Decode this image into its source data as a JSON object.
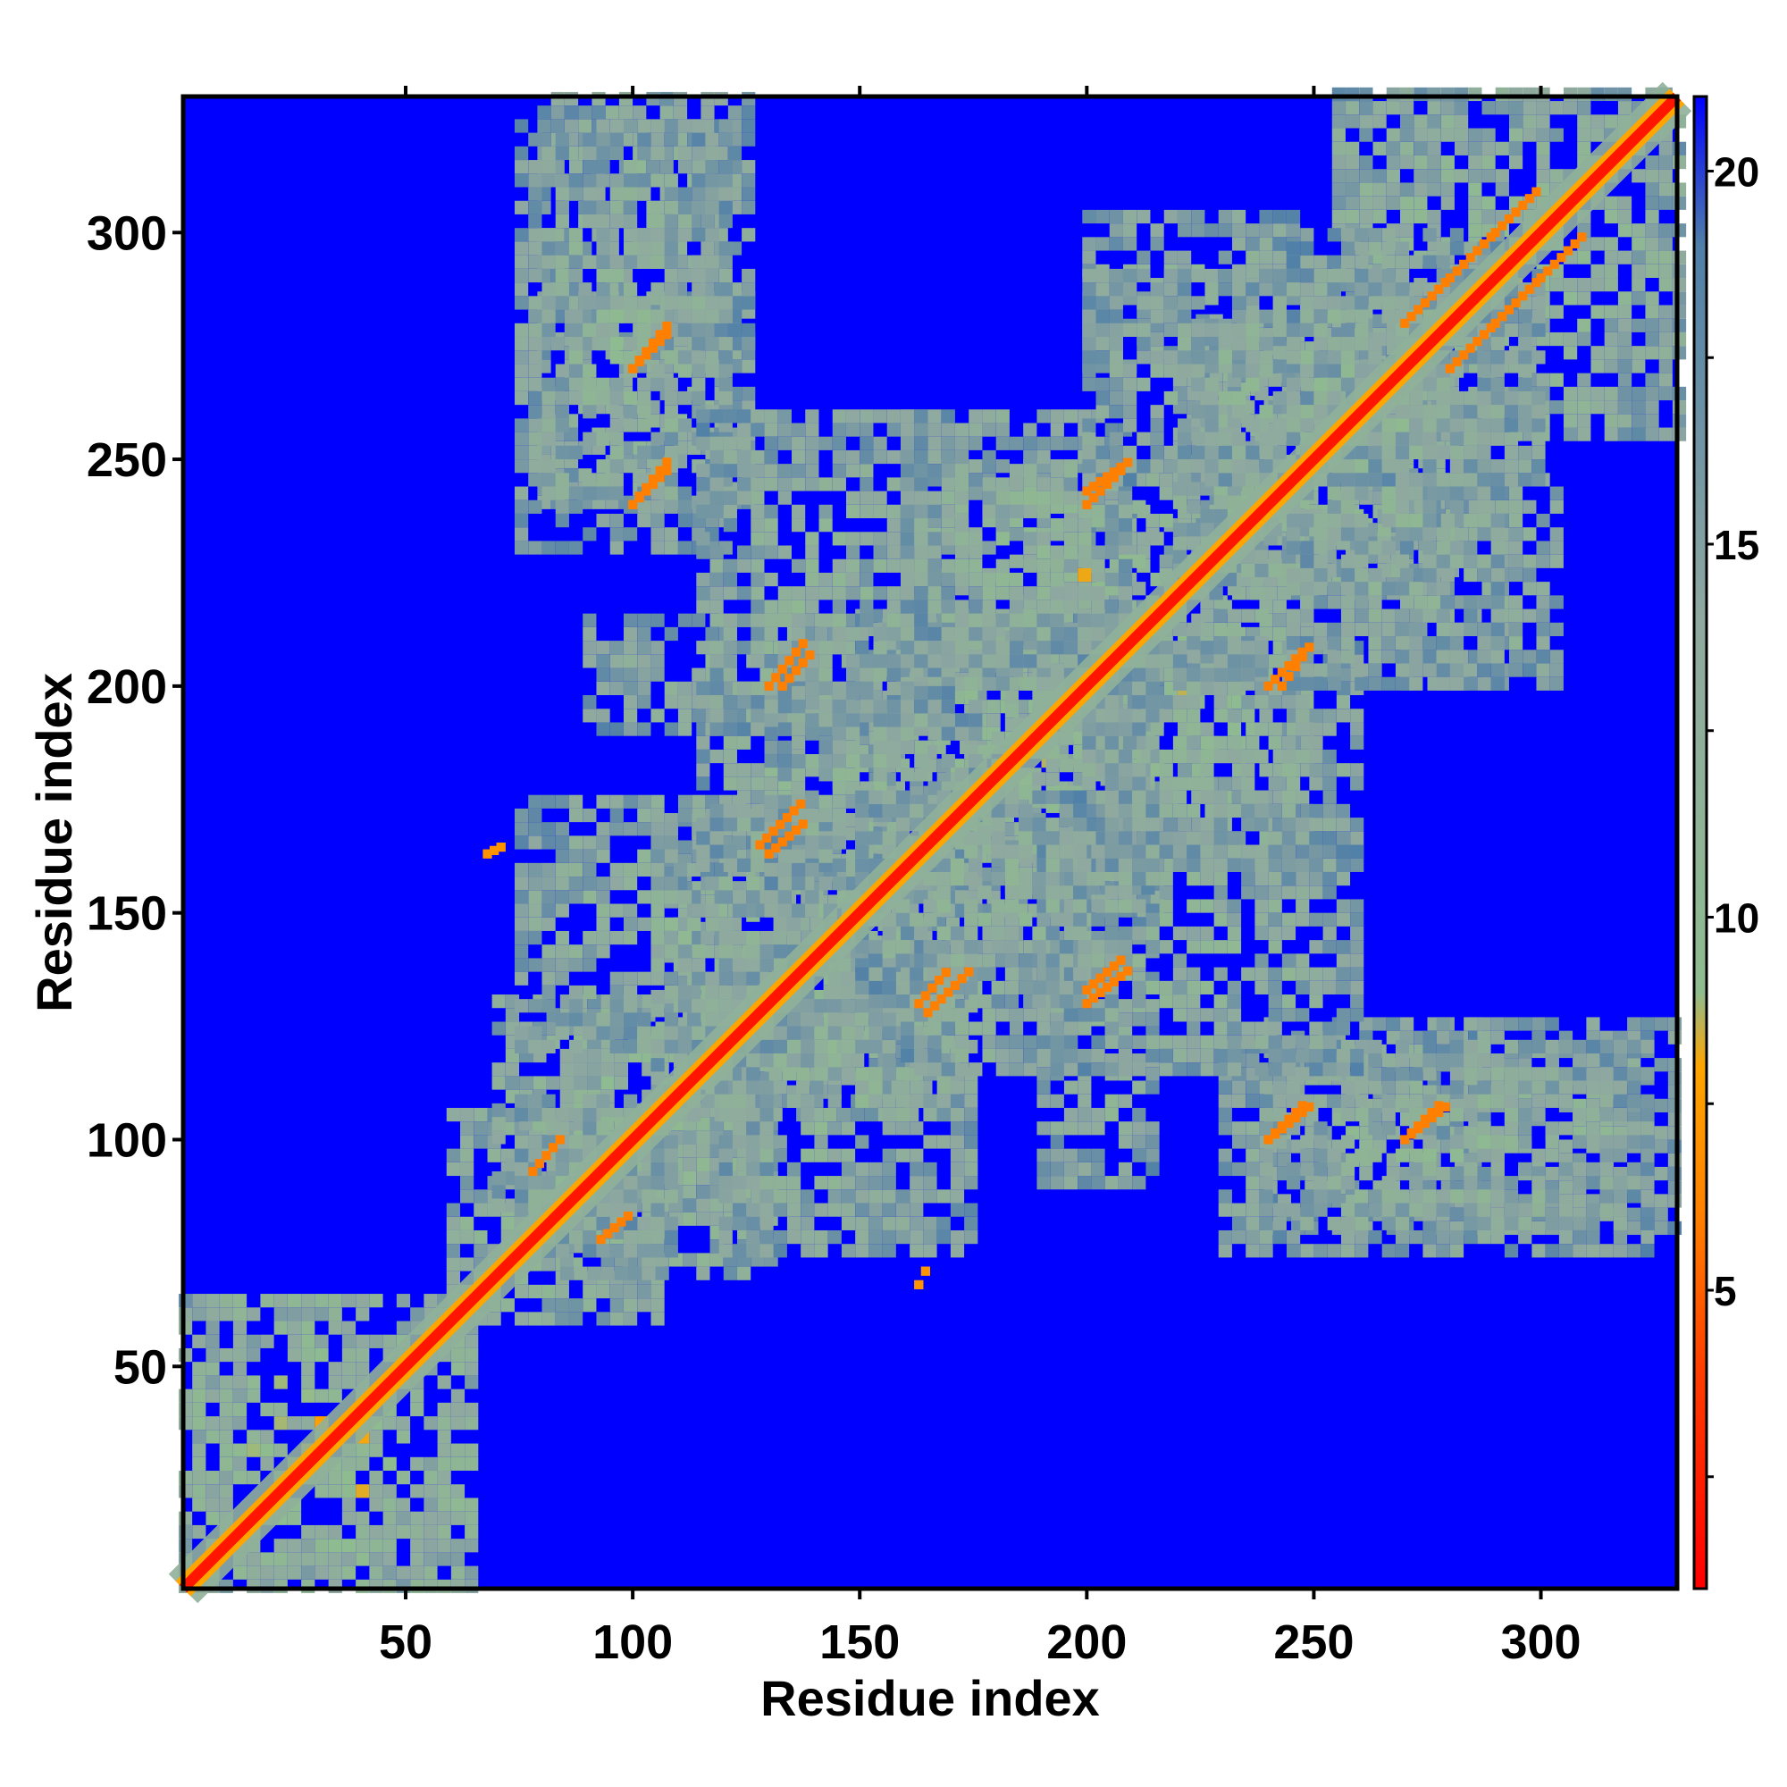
{
  "chart_data": {
    "type": "heatmap",
    "title": "",
    "xlabel": "Residue index",
    "ylabel": "Residue index",
    "xlim": [
      1,
      330
    ],
    "ylim": [
      1,
      330
    ],
    "x_ticks": [
      50,
      100,
      150,
      200,
      250,
      300
    ],
    "y_ticks": [
      50,
      100,
      150,
      200,
      250,
      300
    ],
    "colorbar": {
      "ticks": [
        5,
        10,
        15,
        20
      ],
      "range": [
        1,
        21
      ],
      "stops": [
        {
          "value": 1,
          "color": "#ff0000"
        },
        {
          "value": 4,
          "color": "#ff4000"
        },
        {
          "value": 6,
          "color": "#ff8000"
        },
        {
          "value": 8,
          "color": "#ffa500"
        },
        {
          "value": 9,
          "color": "#8fbc8f"
        },
        {
          "value": 14,
          "color": "#8fa8a0"
        },
        {
          "value": 19,
          "color": "#4f7fa8"
        },
        {
          "value": 21,
          "color": "#0000ff"
        }
      ]
    },
    "background_value": 21,
    "diagonal": {
      "from": 1,
      "to": 330,
      "core_value": 2,
      "halo_value": 8
    },
    "contact_regions": [
      {
        "x": [
          1,
          65
        ],
        "y": [
          1,
          65
        ],
        "value": 10
      },
      {
        "x": [
          60,
          105
        ],
        "y": [
          60,
          105
        ],
        "value": 11
      },
      {
        "x": [
          85,
          130
        ],
        "y": [
          70,
          130
        ],
        "value": 11
      },
      {
        "x": [
          105,
          160
        ],
        "y": [
          110,
          170
        ],
        "value": 11
      },
      {
        "x": [
          120,
          175
        ],
        "y": [
          75,
          140
        ],
        "value": 12
      },
      {
        "x": [
          155,
          215
        ],
        "y": [
          150,
          215
        ],
        "value": 11
      },
      {
        "x": [
          160,
          200
        ],
        "y": [
          115,
          145
        ],
        "value": 12
      },
      {
        "x": [
          190,
          215
        ],
        "y": [
          90,
          150
        ],
        "value": 12
      },
      {
        "x": [
          200,
          250
        ],
        "y": [
          160,
          240
        ],
        "value": 11
      },
      {
        "x": [
          225,
          270
        ],
        "y": [
          220,
          280
        ],
        "value": 11
      },
      {
        "x": [
          240,
          285
        ],
        "y": [
          80,
          125
        ],
        "value": 12
      },
      {
        "x": [
          275,
          330
        ],
        "y": [
          80,
          125
        ],
        "value": 12
      },
      {
        "x": [
          255,
          330
        ],
        "y": [
          255,
          330
        ],
        "value": 11
      },
      {
        "x": [
          75,
          120
        ],
        "y": [
          230,
          325
        ],
        "value": 12
      },
      {
        "x": [
          115,
          165
        ],
        "y": [
          190,
          260
        ],
        "value": 12
      },
      {
        "x": [
          160,
          210
        ],
        "y": [
          205,
          260
        ],
        "value": 12
      },
      {
        "x": [
          200,
          245
        ],
        "y": [
          270,
          305
        ],
        "value": 12
      },
      {
        "x": [
          245,
          290
        ],
        "y": [
          200,
          300
        ],
        "value": 12
      },
      {
        "x": [
          75,
          110
        ],
        "y": [
          75,
          100
        ],
        "value": 12
      },
      {
        "x": [
          130,
          175
        ],
        "y": [
          150,
          200
        ],
        "value": 12
      }
    ],
    "short_contacts": [
      {
        "x": [
          93,
          100
        ],
        "y": [
          78,
          84
        ],
        "value": 6
      },
      {
        "x": [
          128,
          138
        ],
        "y": [
          165,
          175
        ],
        "value": 6
      },
      {
        "x": [
          133,
          140
        ],
        "y": [
          200,
          208
        ],
        "value": 6
      },
      {
        "x": [
          163,
          170
        ],
        "y": [
          130,
          138
        ],
        "value": 6
      },
      {
        "x": [
          200,
          210
        ],
        "y": [
          130,
          138
        ],
        "value": 6
      },
      {
        "x": [
          200,
          210
        ],
        "y": [
          243,
          250
        ],
        "value": 6
      },
      {
        "x": [
          240,
          248
        ],
        "y": [
          100,
          108
        ],
        "value": 6
      },
      {
        "x": [
          270,
          278
        ],
        "y": [
          100,
          108
        ],
        "value": 6
      },
      {
        "x": [
          100,
          108
        ],
        "y": [
          270,
          280
        ],
        "value": 6
      },
      {
        "x": [
          100,
          108
        ],
        "y": [
          240,
          250
        ],
        "value": 6
      },
      {
        "x": [
          240,
          248
        ],
        "y": [
          200,
          208
        ],
        "value": 6
      },
      {
        "x": [
          280,
          290
        ],
        "y": [
          270,
          280
        ],
        "value": 6
      },
      {
        "x": [
          290,
          300
        ],
        "y": [
          280,
          290
        ],
        "value": 6
      },
      {
        "x": [
          300,
          310
        ],
        "y": [
          290,
          300
        ],
        "value": 6
      },
      {
        "x": [
          310,
          318
        ],
        "y": [
          310,
          318
        ],
        "value": 6
      },
      {
        "x": [
          68,
          72
        ],
        "y": [
          163,
          165
        ],
        "value": 7
      },
      {
        "x": [
          163,
          165
        ],
        "y": [
          68,
          72
        ],
        "value": 7
      }
    ]
  }
}
